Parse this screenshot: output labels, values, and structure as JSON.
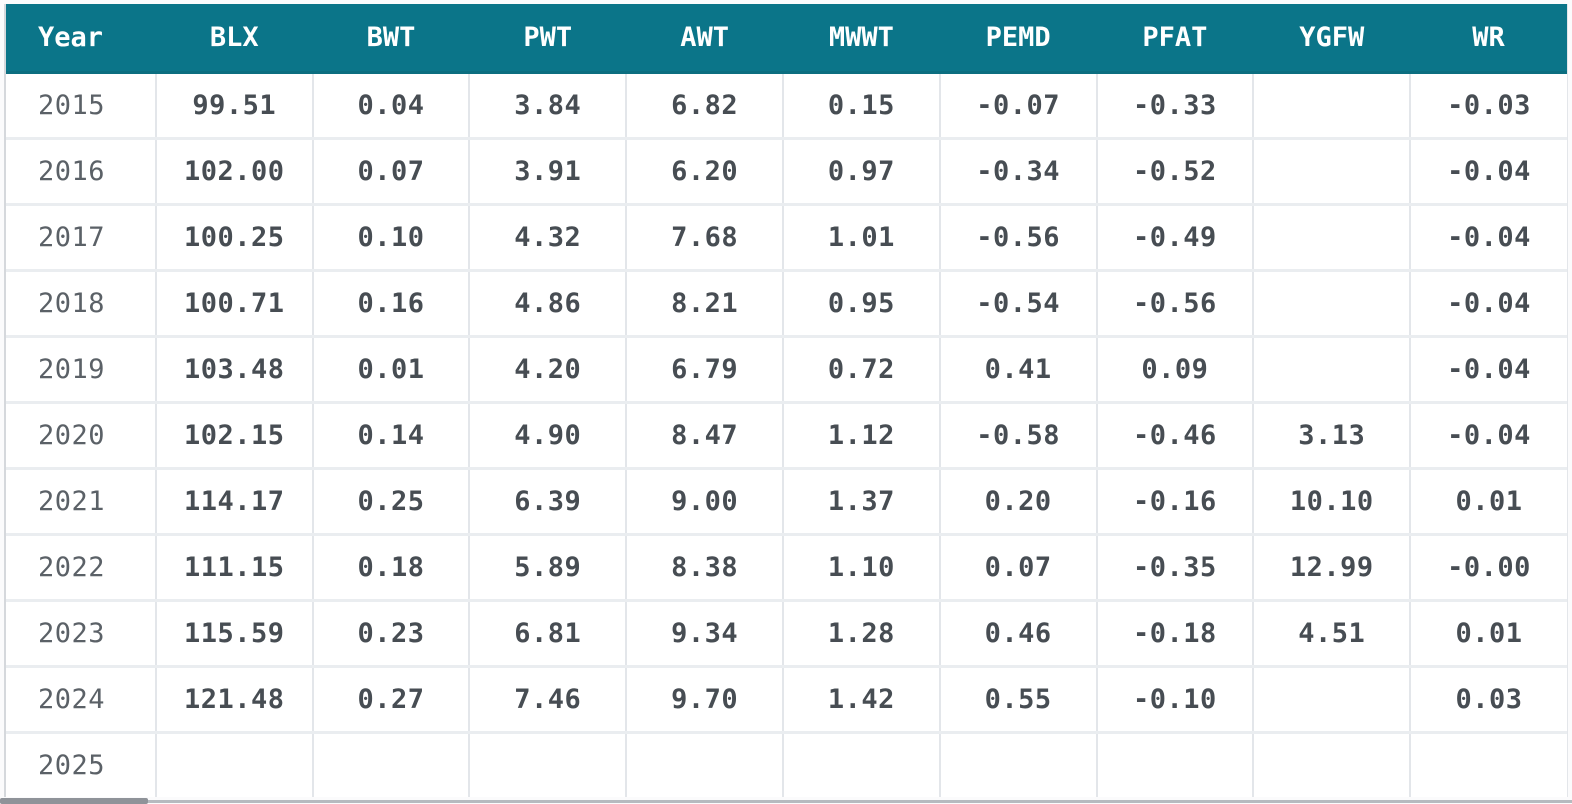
{
  "table": {
    "name": "trait-values-by-year",
    "columns": [
      "Year",
      "BLX",
      "BWT",
      "PWT",
      "AWT",
      "MWWT",
      "PEMD",
      "PFAT",
      "YGFW",
      "WR"
    ],
    "rows": [
      {
        "year": "2015",
        "values": [
          "99.51",
          "0.04",
          "3.84",
          "6.82",
          "0.15",
          "-0.07",
          "-0.33",
          "",
          "-0.03"
        ]
      },
      {
        "year": "2016",
        "values": [
          "102.00",
          "0.07",
          "3.91",
          "6.20",
          "0.97",
          "-0.34",
          "-0.52",
          "",
          "-0.04"
        ]
      },
      {
        "year": "2017",
        "values": [
          "100.25",
          "0.10",
          "4.32",
          "7.68",
          "1.01",
          "-0.56",
          "-0.49",
          "",
          "-0.04"
        ]
      },
      {
        "year": "2018",
        "values": [
          "100.71",
          "0.16",
          "4.86",
          "8.21",
          "0.95",
          "-0.54",
          "-0.56",
          "",
          "-0.04"
        ]
      },
      {
        "year": "2019",
        "values": [
          "103.48",
          "0.01",
          "4.20",
          "6.79",
          "0.72",
          "0.41",
          "0.09",
          "",
          "-0.04"
        ]
      },
      {
        "year": "2020",
        "values": [
          "102.15",
          "0.14",
          "4.90",
          "8.47",
          "1.12",
          "-0.58",
          "-0.46",
          "3.13",
          "-0.04"
        ]
      },
      {
        "year": "2021",
        "values": [
          "114.17",
          "0.25",
          "6.39",
          "9.00",
          "1.37",
          "0.20",
          "-0.16",
          "10.10",
          "0.01"
        ]
      },
      {
        "year": "2022",
        "values": [
          "111.15",
          "0.18",
          "5.89",
          "8.38",
          "1.10",
          "0.07",
          "-0.35",
          "12.99",
          "-0.00"
        ]
      },
      {
        "year": "2023",
        "values": [
          "115.59",
          "0.23",
          "6.81",
          "9.34",
          "1.28",
          "0.46",
          "-0.18",
          "4.51",
          "0.01"
        ]
      },
      {
        "year": "2024",
        "values": [
          "121.48",
          "0.27",
          "7.46",
          "9.70",
          "1.42",
          "0.55",
          "-0.10",
          "",
          "0.03"
        ]
      },
      {
        "year": "2025",
        "values": [
          "",
          "",
          "",
          "",
          "",
          "",
          "",
          "",
          ""
        ]
      }
    ]
  },
  "colors": {
    "header_bg": "#0b7589",
    "header_text": "#ffffff",
    "value_text": "#474d53",
    "year_text": "#5b6167",
    "grid_line": "#e3e6ea"
  }
}
